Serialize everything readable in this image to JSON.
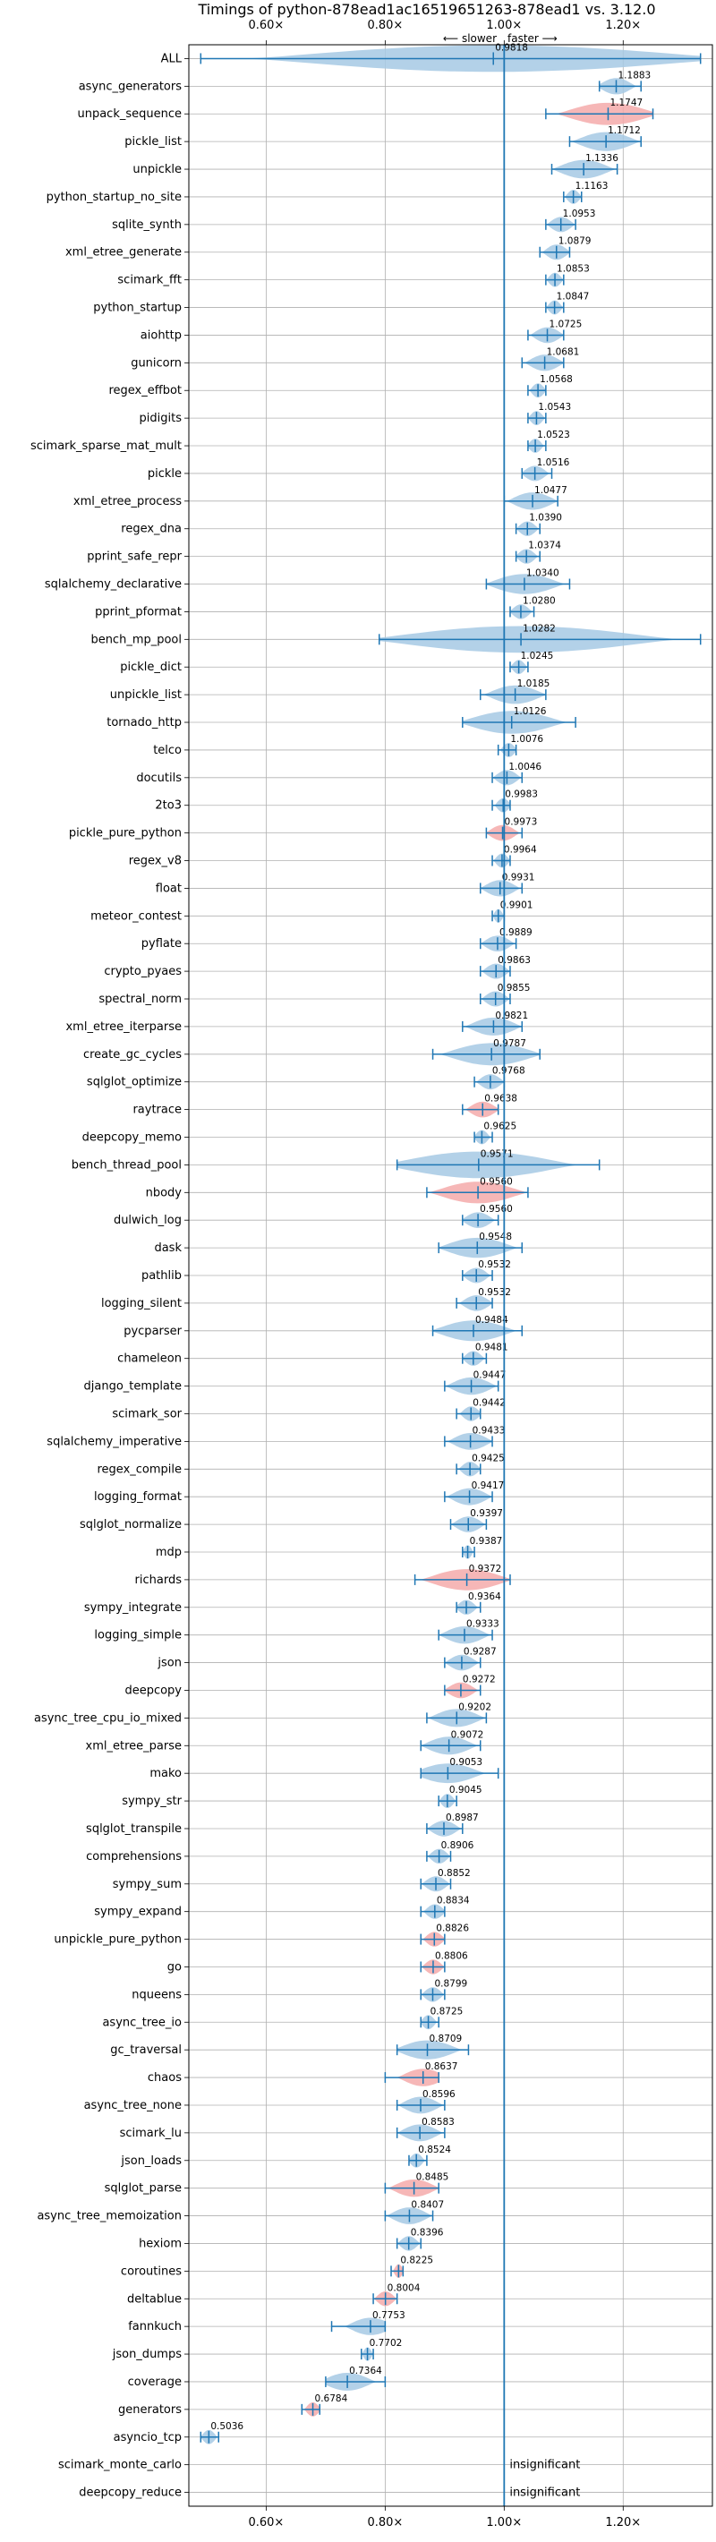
{
  "chart_data": {
    "type": "violin",
    "title": "Timings of python-878ead1ac16519651263-878ead1 vs. 3.12.0",
    "annotation_slower": "⟵ slower",
    "annotation_faster": "faster ⟶",
    "xlim": [
      0.47,
      1.35
    ],
    "xticks": [
      0.6,
      0.8,
      1.0,
      1.2
    ],
    "xtick_labels": [
      "0.60×",
      "0.80×",
      "1.00×",
      "1.20×"
    ],
    "reference_line": 1.0,
    "grid": true,
    "colors": {
      "faster": "#a6c9e4",
      "slower": "#f4aaaa",
      "line": "#1f77b4"
    },
    "rows": [
      {
        "name": "ALL",
        "value": 0.9818,
        "lo": 0.49,
        "hi": 1.33,
        "slower": false
      },
      {
        "name": "async_generators",
        "value": 1.1883,
        "lo": 1.16,
        "hi": 1.23,
        "slower": false
      },
      {
        "name": "unpack_sequence",
        "value": 1.1747,
        "lo": 1.07,
        "hi": 1.25,
        "slower": true
      },
      {
        "name": "pickle_list",
        "value": 1.1712,
        "lo": 1.11,
        "hi": 1.23,
        "slower": false
      },
      {
        "name": "unpickle",
        "value": 1.1336,
        "lo": 1.08,
        "hi": 1.19,
        "slower": false
      },
      {
        "name": "python_startup_no_site",
        "value": 1.1163,
        "lo": 1.1,
        "hi": 1.13,
        "slower": false
      },
      {
        "name": "sqlite_synth",
        "value": 1.0953,
        "lo": 1.07,
        "hi": 1.12,
        "slower": false
      },
      {
        "name": "xml_etree_generate",
        "value": 1.0879,
        "lo": 1.06,
        "hi": 1.11,
        "slower": false
      },
      {
        "name": "scimark_fft",
        "value": 1.0853,
        "lo": 1.07,
        "hi": 1.1,
        "slower": false
      },
      {
        "name": "python_startup",
        "value": 1.0847,
        "lo": 1.07,
        "hi": 1.1,
        "slower": false
      },
      {
        "name": "aiohttp",
        "value": 1.0725,
        "lo": 1.04,
        "hi": 1.1,
        "slower": false
      },
      {
        "name": "gunicorn",
        "value": 1.0681,
        "lo": 1.03,
        "hi": 1.1,
        "slower": false
      },
      {
        "name": "regex_effbot",
        "value": 1.0568,
        "lo": 1.04,
        "hi": 1.07,
        "slower": false
      },
      {
        "name": "pidigits",
        "value": 1.0543,
        "lo": 1.04,
        "hi": 1.07,
        "slower": false
      },
      {
        "name": "scimark_sparse_mat_mult",
        "value": 1.0523,
        "lo": 1.04,
        "hi": 1.07,
        "slower": false
      },
      {
        "name": "pickle",
        "value": 1.0516,
        "lo": 1.03,
        "hi": 1.08,
        "slower": false
      },
      {
        "name": "xml_etree_process",
        "value": 1.0477,
        "lo": 1.0,
        "hi": 1.09,
        "slower": false
      },
      {
        "name": "regex_dna",
        "value": 1.039,
        "lo": 1.02,
        "hi": 1.06,
        "slower": false
      },
      {
        "name": "pprint_safe_repr",
        "value": 1.0374,
        "lo": 1.02,
        "hi": 1.06,
        "slower": false
      },
      {
        "name": "sqlalchemy_declarative",
        "value": 1.034,
        "lo": 0.97,
        "hi": 1.11,
        "slower": false
      },
      {
        "name": "pprint_pformat",
        "value": 1.028,
        "lo": 1.01,
        "hi": 1.05,
        "slower": false
      },
      {
        "name": "bench_mp_pool",
        "value": 1.0282,
        "lo": 0.79,
        "hi": 1.33,
        "slower": false
      },
      {
        "name": "pickle_dict",
        "value": 1.0245,
        "lo": 1.01,
        "hi": 1.04,
        "slower": false
      },
      {
        "name": "unpickle_list",
        "value": 1.0185,
        "lo": 0.96,
        "hi": 1.07,
        "slower": false
      },
      {
        "name": "tornado_http",
        "value": 1.0126,
        "lo": 0.93,
        "hi": 1.12,
        "slower": false
      },
      {
        "name": "telco",
        "value": 1.0076,
        "lo": 0.99,
        "hi": 1.02,
        "slower": false
      },
      {
        "name": "docutils",
        "value": 1.0046,
        "lo": 0.98,
        "hi": 1.03,
        "slower": false
      },
      {
        "name": "2to3",
        "value": 0.9983,
        "lo": 0.98,
        "hi": 1.01,
        "slower": false
      },
      {
        "name": "pickle_pure_python",
        "value": 0.9973,
        "lo": 0.97,
        "hi": 1.03,
        "slower": true
      },
      {
        "name": "regex_v8",
        "value": 0.9964,
        "lo": 0.98,
        "hi": 1.01,
        "slower": false
      },
      {
        "name": "float",
        "value": 0.9931,
        "lo": 0.96,
        "hi": 1.03,
        "slower": false
      },
      {
        "name": "meteor_contest",
        "value": 0.9901,
        "lo": 0.98,
        "hi": 1.0,
        "slower": false
      },
      {
        "name": "pyflate",
        "value": 0.9889,
        "lo": 0.96,
        "hi": 1.02,
        "slower": false
      },
      {
        "name": "crypto_pyaes",
        "value": 0.9863,
        "lo": 0.96,
        "hi": 1.01,
        "slower": false
      },
      {
        "name": "spectral_norm",
        "value": 0.9855,
        "lo": 0.96,
        "hi": 1.01,
        "slower": false
      },
      {
        "name": "xml_etree_iterparse",
        "value": 0.9821,
        "lo": 0.93,
        "hi": 1.03,
        "slower": false
      },
      {
        "name": "create_gc_cycles",
        "value": 0.9787,
        "lo": 0.88,
        "hi": 1.06,
        "slower": false
      },
      {
        "name": "sqlglot_optimize",
        "value": 0.9768,
        "lo": 0.95,
        "hi": 1.0,
        "slower": false
      },
      {
        "name": "raytrace",
        "value": 0.9638,
        "lo": 0.93,
        "hi": 0.99,
        "slower": true
      },
      {
        "name": "deepcopy_memo",
        "value": 0.9625,
        "lo": 0.95,
        "hi": 0.98,
        "slower": false
      },
      {
        "name": "bench_thread_pool",
        "value": 0.9571,
        "lo": 0.82,
        "hi": 1.16,
        "slower": false
      },
      {
        "name": "nbody",
        "value": 0.956,
        "lo": 0.87,
        "hi": 1.04,
        "slower": true
      },
      {
        "name": "dulwich_log",
        "value": 0.956,
        "lo": 0.93,
        "hi": 0.99,
        "slower": false
      },
      {
        "name": "dask",
        "value": 0.9548,
        "lo": 0.89,
        "hi": 1.03,
        "slower": false
      },
      {
        "name": "pathlib",
        "value": 0.9532,
        "lo": 0.93,
        "hi": 0.98,
        "slower": false
      },
      {
        "name": "logging_silent",
        "value": 0.9532,
        "lo": 0.92,
        "hi": 0.98,
        "slower": false
      },
      {
        "name": "pycparser",
        "value": 0.9484,
        "lo": 0.88,
        "hi": 1.03,
        "slower": false
      },
      {
        "name": "chameleon",
        "value": 0.9481,
        "lo": 0.93,
        "hi": 0.97,
        "slower": false
      },
      {
        "name": "django_template",
        "value": 0.9447,
        "lo": 0.9,
        "hi": 0.99,
        "slower": false
      },
      {
        "name": "scimark_sor",
        "value": 0.9442,
        "lo": 0.92,
        "hi": 0.96,
        "slower": false
      },
      {
        "name": "sqlalchemy_imperative",
        "value": 0.9433,
        "lo": 0.9,
        "hi": 0.98,
        "slower": false
      },
      {
        "name": "regex_compile",
        "value": 0.9425,
        "lo": 0.92,
        "hi": 0.96,
        "slower": false
      },
      {
        "name": "logging_format",
        "value": 0.9417,
        "lo": 0.9,
        "hi": 0.98,
        "slower": false
      },
      {
        "name": "sqlglot_normalize",
        "value": 0.9397,
        "lo": 0.91,
        "hi": 0.97,
        "slower": false
      },
      {
        "name": "mdp",
        "value": 0.9387,
        "lo": 0.93,
        "hi": 0.95,
        "slower": false
      },
      {
        "name": "richards",
        "value": 0.9372,
        "lo": 0.85,
        "hi": 1.01,
        "slower": true
      },
      {
        "name": "sympy_integrate",
        "value": 0.9364,
        "lo": 0.92,
        "hi": 0.96,
        "slower": false
      },
      {
        "name": "logging_simple",
        "value": 0.9333,
        "lo": 0.89,
        "hi": 0.98,
        "slower": false
      },
      {
        "name": "json",
        "value": 0.9287,
        "lo": 0.9,
        "hi": 0.96,
        "slower": false
      },
      {
        "name": "deepcopy",
        "value": 0.9272,
        "lo": 0.9,
        "hi": 0.96,
        "slower": true
      },
      {
        "name": "async_tree_cpu_io_mixed",
        "value": 0.9202,
        "lo": 0.87,
        "hi": 0.97,
        "slower": false
      },
      {
        "name": "xml_etree_parse",
        "value": 0.9072,
        "lo": 0.86,
        "hi": 0.96,
        "slower": false
      },
      {
        "name": "mako",
        "value": 0.9053,
        "lo": 0.86,
        "hi": 0.99,
        "slower": false
      },
      {
        "name": "sympy_str",
        "value": 0.9045,
        "lo": 0.89,
        "hi": 0.92,
        "slower": false
      },
      {
        "name": "sqlglot_transpile",
        "value": 0.8987,
        "lo": 0.87,
        "hi": 0.93,
        "slower": false
      },
      {
        "name": "comprehensions",
        "value": 0.8906,
        "lo": 0.87,
        "hi": 0.91,
        "slower": false
      },
      {
        "name": "sympy_sum",
        "value": 0.8852,
        "lo": 0.86,
        "hi": 0.91,
        "slower": false
      },
      {
        "name": "sympy_expand",
        "value": 0.8834,
        "lo": 0.86,
        "hi": 0.9,
        "slower": false
      },
      {
        "name": "unpickle_pure_python",
        "value": 0.8826,
        "lo": 0.86,
        "hi": 0.9,
        "slower": true
      },
      {
        "name": "go",
        "value": 0.8806,
        "lo": 0.86,
        "hi": 0.9,
        "slower": true
      },
      {
        "name": "nqueens",
        "value": 0.8799,
        "lo": 0.86,
        "hi": 0.9,
        "slower": false
      },
      {
        "name": "async_tree_io",
        "value": 0.8725,
        "lo": 0.86,
        "hi": 0.89,
        "slower": false
      },
      {
        "name": "gc_traversal",
        "value": 0.8709,
        "lo": 0.82,
        "hi": 0.94,
        "slower": false
      },
      {
        "name": "chaos",
        "value": 0.8637,
        "lo": 0.8,
        "hi": 0.89,
        "slower": true
      },
      {
        "name": "async_tree_none",
        "value": 0.8596,
        "lo": 0.82,
        "hi": 0.9,
        "slower": false
      },
      {
        "name": "scimark_lu",
        "value": 0.8583,
        "lo": 0.82,
        "hi": 0.9,
        "slower": false
      },
      {
        "name": "json_loads",
        "value": 0.8524,
        "lo": 0.84,
        "hi": 0.87,
        "slower": false
      },
      {
        "name": "sqlglot_parse",
        "value": 0.8485,
        "lo": 0.8,
        "hi": 0.89,
        "slower": true
      },
      {
        "name": "async_tree_memoization",
        "value": 0.8407,
        "lo": 0.8,
        "hi": 0.88,
        "slower": false
      },
      {
        "name": "hexiom",
        "value": 0.8396,
        "lo": 0.82,
        "hi": 0.86,
        "slower": false
      },
      {
        "name": "coroutines",
        "value": 0.8225,
        "lo": 0.81,
        "hi": 0.83,
        "slower": true
      },
      {
        "name": "deltablue",
        "value": 0.8004,
        "lo": 0.78,
        "hi": 0.82,
        "slower": true
      },
      {
        "name": "fannkuch",
        "value": 0.7753,
        "lo": 0.71,
        "hi": 0.8,
        "slower": false
      },
      {
        "name": "json_dumps",
        "value": 0.7702,
        "lo": 0.76,
        "hi": 0.78,
        "slower": false
      },
      {
        "name": "coverage",
        "value": 0.7364,
        "lo": 0.7,
        "hi": 0.8,
        "slower": false
      },
      {
        "name": "generators",
        "value": 0.6784,
        "lo": 0.66,
        "hi": 0.69,
        "slower": true
      },
      {
        "name": "asyncio_tcp",
        "value": 0.5036,
        "lo": 0.49,
        "hi": 0.52,
        "slower": false
      },
      {
        "name": "scimark_monte_carlo",
        "value": null,
        "note": "insignificant"
      },
      {
        "name": "deepcopy_reduce",
        "value": null,
        "note": "insignificant"
      }
    ]
  }
}
